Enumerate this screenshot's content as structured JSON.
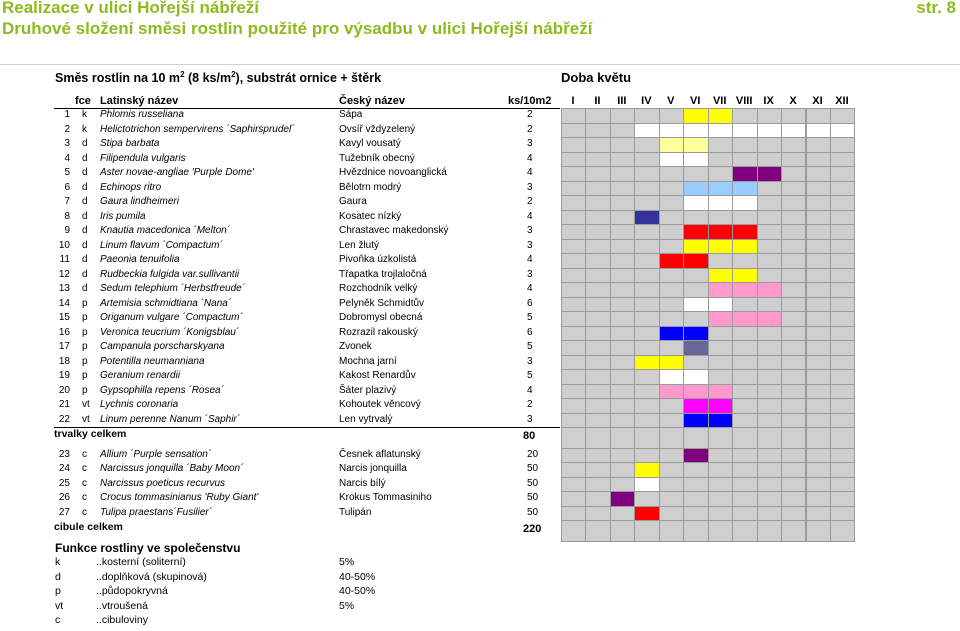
{
  "header": {
    "title": "Realizace v ulici Hořejší nábřeží",
    "subtitle": "Druhové složení směsi rostlin použité pro výsadbu v ulici Hořejší nábřeží",
    "page": "str. 8"
  },
  "section": {
    "heading_a": "Směs rostlin na 10 m",
    "heading_sup1": "2",
    "heading_b": " (8 ks/m",
    "heading_sup2": "2",
    "heading_c": "), substrát ornice + štěrk",
    "bloom_title": "Doba květu"
  },
  "columns": {
    "fce": "fce",
    "latin": "Latinský název",
    "czech": "Český název",
    "ks": "ks/10m2",
    "months": [
      "I",
      "II",
      "III",
      "IV",
      "V",
      "VI",
      "VII",
      "VIII",
      "IX",
      "X",
      "XI",
      "XII"
    ]
  },
  "rows": [
    {
      "n": "1",
      "f": "k",
      "lat": "Phlomis russeliana",
      "cz": "Sápa",
      "ks": "2",
      "bloom": [
        null,
        null,
        null,
        null,
        null,
        "#ffff00",
        "#ffff00",
        null,
        null,
        null,
        null,
        null
      ]
    },
    {
      "n": "2",
      "f": "k",
      "lat": "Helictotrichon sempervirens ´Saphirsprudel´",
      "cz": "Ovsíř vždyzelený",
      "ks": "2",
      "bloom": [
        null,
        null,
        null,
        "#ffffff",
        "#ffffff",
        "#ffffff",
        "#ffffff",
        "#ffffff",
        "#ffffff",
        "#ffffff",
        "#ffffff",
        "#ffffff"
      ]
    },
    {
      "n": "3",
      "f": "d",
      "lat": "Stipa barbata",
      "cz": "Kavyl vousatý",
      "ks": "3",
      "bloom": [
        null,
        null,
        null,
        null,
        "#ffff99",
        "#ffff99",
        null,
        null,
        null,
        null,
        null,
        null
      ]
    },
    {
      "n": "4",
      "f": "d",
      "lat": "Filipendula vulgaris",
      "cz": "Tužebník obecný",
      "ks": "4",
      "bloom": [
        null,
        null,
        null,
        null,
        "#ffffff",
        "#ffffff",
        null,
        null,
        null,
        null,
        null,
        null
      ]
    },
    {
      "n": "5",
      "f": "d",
      "lat": "Aster novae-angliae 'Purple Dome'",
      "cz": "Hvězdnice novoanglická",
      "ks": "4",
      "bloom": [
        null,
        null,
        null,
        null,
        null,
        null,
        null,
        "#800080",
        "#800080",
        null,
        null,
        null
      ]
    },
    {
      "n": "6",
      "f": "d",
      "lat": "Echinops ritro",
      "cz": "Bělotrn modrý",
      "ks": "3",
      "bloom": [
        null,
        null,
        null,
        null,
        null,
        "#99ccff",
        "#99ccff",
        "#99ccff",
        null,
        null,
        null,
        null
      ]
    },
    {
      "n": "7",
      "f": "d",
      "lat": "Gaura lindheimeri",
      "cz": "Gaura",
      "ks": "2",
      "bloom": [
        null,
        null,
        null,
        null,
        null,
        "#ffffff",
        "#ffffff",
        "#ffffff",
        null,
        null,
        null,
        null
      ]
    },
    {
      "n": "8",
      "f": "d",
      "lat": "Iris pumila",
      "cz": "Kosatec nízký",
      "ks": "4",
      "bloom": [
        null,
        null,
        null,
        "#333399",
        null,
        null,
        null,
        null,
        null,
        null,
        null,
        null
      ]
    },
    {
      "n": "9",
      "f": "d",
      "lat": "Knautia macedonica ´Melton´",
      "cz": "Chrastavec makedonský",
      "ks": "3",
      "bloom": [
        null,
        null,
        null,
        null,
        null,
        "#ff0000",
        "#ff0000",
        "#ff0000",
        null,
        null,
        null,
        null
      ]
    },
    {
      "n": "10",
      "f": "d",
      "lat": "Linum flavum ´Compactum´",
      "cz": "Len žlutý",
      "ks": "3",
      "bloom": [
        null,
        null,
        null,
        null,
        null,
        "#ffff00",
        "#ffff00",
        "#ffff00",
        null,
        null,
        null,
        null
      ]
    },
    {
      "n": "11",
      "f": "d",
      "lat": "Paeonia tenuifolia",
      "cz": "Pivoňka úzkolistá",
      "ks": "4",
      "bloom": [
        null,
        null,
        null,
        null,
        "#ff0000",
        "#ff0000",
        null,
        null,
        null,
        null,
        null,
        null
      ]
    },
    {
      "n": "12",
      "f": "d",
      "lat": "Rudbeckia fulgida var.sullivantii",
      "cz": "Třapatka trojlaločná",
      "ks": "3",
      "bloom": [
        null,
        null,
        null,
        null,
        null,
        null,
        "#ffff00",
        "#ffff00",
        null,
        null,
        null,
        null
      ]
    },
    {
      "n": "13",
      "f": "d",
      "lat": "Sedum telephium ´Herbstfreude´",
      "cz": "Rozchodník velký",
      "ks": "4",
      "bloom": [
        null,
        null,
        null,
        null,
        null,
        null,
        "#ff99cc",
        "#ff99cc",
        "#ff99cc",
        null,
        null,
        null
      ]
    },
    {
      "n": "14",
      "f": "p",
      "lat": "Artemisia schmidtiana ´Nana´",
      "cz": "Pelyněk Schmidtův",
      "ks": "6",
      "bloom": [
        null,
        null,
        null,
        null,
        null,
        "#ffffff",
        "#ffffff",
        null,
        null,
        null,
        null,
        null
      ]
    },
    {
      "n": "15",
      "f": "p",
      "lat": "Origanum vulgare ´Compactum´",
      "cz": "Dobromysl obecná",
      "ks": "5",
      "bloom": [
        null,
        null,
        null,
        null,
        null,
        null,
        "#ff99cc",
        "#ff99cc",
        "#ff99cc",
        null,
        null,
        null
      ]
    },
    {
      "n": "16",
      "f": "p",
      "lat": "Veronica teucrium ´Konigsblau´",
      "cz": "Rozrazil rakouský",
      "ks": "6",
      "bloom": [
        null,
        null,
        null,
        null,
        "#0000ff",
        "#0000ff",
        null,
        null,
        null,
        null,
        null,
        null
      ]
    },
    {
      "n": "17",
      "f": "p",
      "lat": "Campanula porscharskyana",
      "cz": "Zvonek",
      "ks": "5",
      "bloom": [
        null,
        null,
        null,
        null,
        null,
        "#666699",
        null,
        null,
        null,
        null,
        null,
        null
      ]
    },
    {
      "n": "18",
      "f": "p",
      "lat": "Potentilla neumanniana",
      "cz": "Mochna jarní",
      "ks": "3",
      "bloom": [
        null,
        null,
        null,
        "#ffff00",
        "#ffff00",
        null,
        null,
        null,
        null,
        null,
        null,
        null
      ]
    },
    {
      "n": "19",
      "f": "p",
      "lat": "Geranium renardii",
      "cz": "Kakost Renardův",
      "ks": "5",
      "bloom": [
        null,
        null,
        null,
        null,
        "#ffffff",
        "#ffffff",
        null,
        null,
        null,
        null,
        null,
        null
      ]
    },
    {
      "n": "20",
      "f": "p",
      "lat": "Gypsophilla repens ´Rosea´",
      "cz": "Šáter plazivý",
      "ks": "4",
      "bloom": [
        null,
        null,
        null,
        null,
        "#ff99cc",
        "#ff99cc",
        "#ff99cc",
        null,
        null,
        null,
        null,
        null
      ]
    },
    {
      "n": "21",
      "f": "vt",
      "lat": "Lychnis coronaria",
      "cz": "Kohoutek věncový",
      "ks": "2",
      "bloom": [
        null,
        null,
        null,
        null,
        null,
        "#ff00ff",
        "#ff00ff",
        null,
        null,
        null,
        null,
        null
      ]
    },
    {
      "n": "22",
      "f": "vt",
      "lat": "Linum perenne Nanum ´Saphir´",
      "cz": "Len vytrvalý",
      "ks": "3",
      "bloom": [
        null,
        null,
        null,
        null,
        null,
        "#0000ff",
        "#0000ff",
        null,
        null,
        null,
        null,
        null
      ]
    }
  ],
  "trvalky": {
    "label": "trvalky celkem",
    "total": "80"
  },
  "bulbs": [
    {
      "n": "23",
      "f": "c",
      "lat": "Allium ´Purple sensation´",
      "cz": "Česnek aflatunský",
      "ks": "20",
      "bloom": [
        null,
        null,
        null,
        null,
        null,
        "#800080",
        null,
        null,
        null,
        null,
        null,
        null
      ]
    },
    {
      "n": "24",
      "f": "c",
      "lat": "Narcissus jonquilla ´Baby Moon´",
      "cz": "Narcis jonquilla",
      "ks": "50",
      "bloom": [
        null,
        null,
        null,
        "#ffff00",
        null,
        null,
        null,
        null,
        null,
        null,
        null,
        null
      ]
    },
    {
      "n": "25",
      "f": "c",
      "lat": "Narcissus poeticus recurvus",
      "cz": "Narcis bílý",
      "ks": "50",
      "bloom": [
        null,
        null,
        null,
        "#ffffff",
        null,
        null,
        null,
        null,
        null,
        null,
        null,
        null
      ]
    },
    {
      "n": "26",
      "f": "c",
      "lat": "Crocus tommasinianus 'Ruby Giant'",
      "cz": "Krokus Tommasiniho",
      "ks": "50",
      "bloom": [
        null,
        null,
        "#800080",
        null,
        null,
        null,
        null,
        null,
        null,
        null,
        null,
        null
      ]
    },
    {
      "n": "27",
      "f": "c",
      "lat": "Tulipa praestans´Fusilier´",
      "cz": "Tulipán",
      "ks": "50",
      "bloom": [
        null,
        null,
        null,
        "#ff0000",
        null,
        null,
        null,
        null,
        null,
        null,
        null,
        null
      ]
    }
  ],
  "cibule": {
    "label": "cibule celkem",
    "total": "220"
  },
  "functions": {
    "title": "Funkce rostliny ve společenstvu",
    "items": [
      {
        "code": "k",
        "desc": "..kosterní (soliterní)",
        "pct": "5%"
      },
      {
        "code": "d",
        "desc": "..doplňková (skupinová)",
        "pct": "40-50%"
      },
      {
        "code": "p",
        "desc": "..půdopokryvná",
        "pct": "40-50%"
      },
      {
        "code": "vt",
        "desc": "..vtroušená",
        "pct": "5%"
      },
      {
        "code": "c",
        "desc": "..cibuloviny",
        "pct": ""
      }
    ]
  }
}
